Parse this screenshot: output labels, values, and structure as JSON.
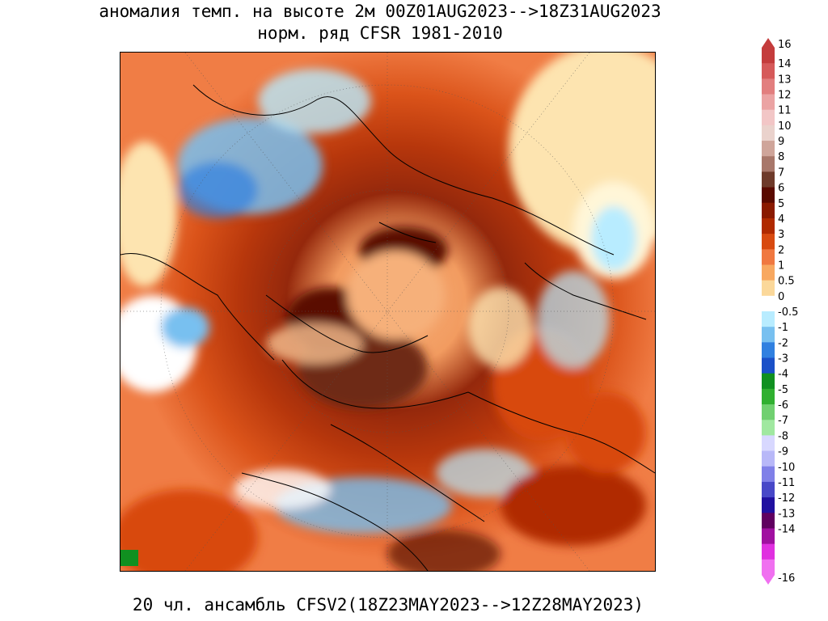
{
  "title": {
    "line1": "аномалия темп. на высоте 2м 00Z01AUG2023-->18Z31AUG2023",
    "line2": "норм. ряд CFSR 1981-2010"
  },
  "footer": "20 чл. ансамбль CFSV2(18Z23MAY2023-->12Z28MAY2023)",
  "colorbar": {
    "labels": [
      "16",
      "14",
      "13",
      "12",
      "11",
      "10",
      "9",
      "8",
      "7",
      "6",
      "5",
      "4",
      "3",
      "2",
      "1",
      "0.5",
      "0",
      "-0.5",
      "-1",
      "-2",
      "-3",
      "-4",
      "-5",
      "-6",
      "-7",
      "-8",
      "-9",
      "-10",
      "-11",
      "-12",
      "-13",
      "-14",
      "-16"
    ],
    "colors": [
      "#c43c3c",
      "#d65a5a",
      "#e27e7e",
      "#eba3a3",
      "#f2c6c6",
      "#ead2cc",
      "#cfa59a",
      "#a8776a",
      "#6e3a2a",
      "#5a0a00",
      "#8a1a00",
      "#b02a00",
      "#d84a10",
      "#f07840",
      "#f8a860",
      "#fbd89a",
      "#ffffff",
      "#b8ecff",
      "#78c0f0",
      "#3080e0",
      "#1a50c8",
      "#109020",
      "#30b030",
      "#70d070",
      "#a0e8a0",
      "#d8d8ff",
      "#b8b8f8",
      "#8080e8",
      "#4848c8",
      "#2010a0",
      "#600060",
      "#a010a0",
      "#e030e0",
      "#f070f0"
    ],
    "min_label": "-16",
    "max_label": "16"
  }
}
